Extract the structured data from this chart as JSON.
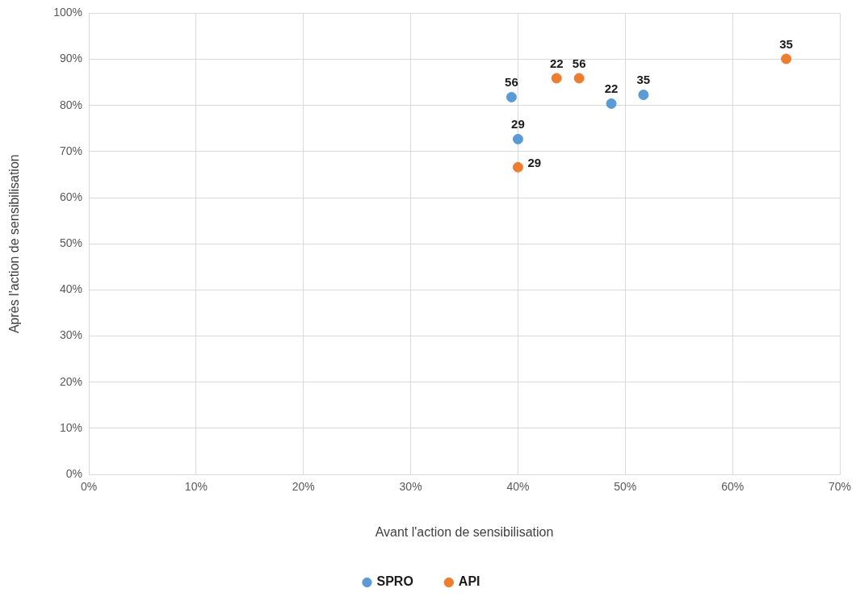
{
  "chart_data": {
    "type": "scatter",
    "xlabel": "Avant l'action de sensibilisation",
    "ylabel": "Après l'action de sensibilisation",
    "series": [
      {
        "name": "SPRO",
        "color": "#5b9bd5",
        "x": [
          39.4,
          40.0,
          48.7,
          51.7
        ],
        "values": [
          81.8,
          72.7,
          80.4,
          82.3
        ]
      },
      {
        "name": "API",
        "color": "#ed7d31",
        "x": [
          43.6,
          45.7,
          40.0,
          65.0
        ],
        "values": [
          85.9,
          85.9,
          66.6,
          90.1
        ]
      }
    ],
    "annotations": [
      {
        "text": "56",
        "x": 39.4,
        "y": 81.8
      },
      {
        "text": "29",
        "x": 40.0,
        "y": 72.7
      },
      {
        "text": "22",
        "x": 48.7,
        "y": 80.4
      },
      {
        "text": "35",
        "x": 51.7,
        "y": 82.3
      },
      {
        "text": "22",
        "x": 43.6,
        "y": 85.9
      },
      {
        "text": "56",
        "x": 45.7,
        "y": 85.9
      },
      {
        "text": "29",
        "x": 40.0,
        "y": 66.6
      },
      {
        "text": "35",
        "x": 65.0,
        "y": 90.1
      }
    ],
    "xlim": [
      0,
      70
    ],
    "xticks": [
      {
        "value": 0,
        "label": "0%"
      },
      {
        "value": 10,
        "label": "10%"
      },
      {
        "value": 20,
        "label": "20%"
      },
      {
        "value": 30,
        "label": "30%"
      },
      {
        "value": 40,
        "label": "40%"
      },
      {
        "value": 50,
        "label": "50%"
      },
      {
        "value": 60,
        "label": "60%"
      },
      {
        "value": 70,
        "label": "70%"
      }
    ],
    "ylim": [
      0,
      100
    ],
    "yticks": [
      {
        "value": 0,
        "label": "0%"
      },
      {
        "value": 10,
        "label": "10%"
      },
      {
        "value": 20,
        "label": "20%"
      },
      {
        "value": 30,
        "label": "30%"
      },
      {
        "value": 40,
        "label": "40%"
      },
      {
        "value": 50,
        "label": "50%"
      },
      {
        "value": 60,
        "label": "60%"
      },
      {
        "value": 70,
        "label": "70%"
      },
      {
        "value": 80,
        "label": "80%"
      },
      {
        "value": 90,
        "label": "90%"
      },
      {
        "value": 100,
        "label": "100%"
      }
    ],
    "grid": true,
    "legend": "bottom",
    "marker": "circle"
  }
}
